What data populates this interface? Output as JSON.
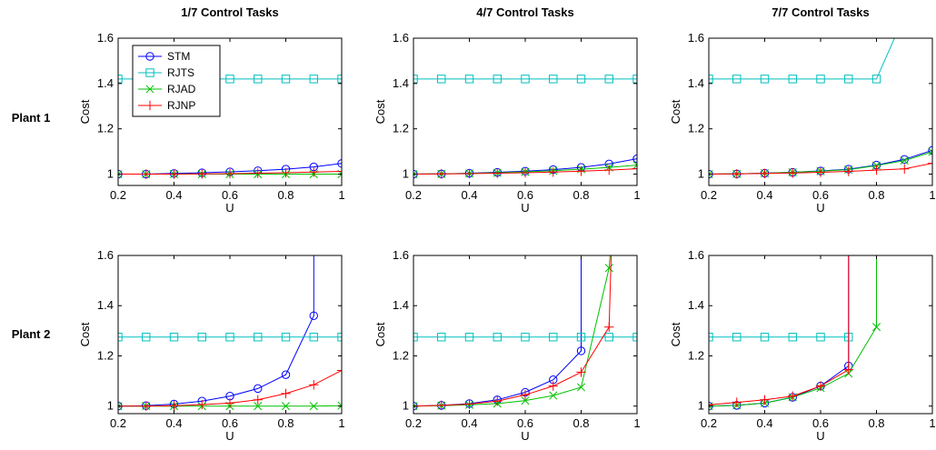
{
  "column_titles": [
    "1/7 Control Tasks",
    "4/7 Control Tasks",
    "7/7 Control Tasks"
  ],
  "row_labels": [
    "Plant 1",
    "Plant 2"
  ],
  "series_styles": [
    {
      "name": "STM",
      "color": "#0000ff",
      "marker": "circle"
    },
    {
      "name": "RJTS",
      "color": "#00bfbf",
      "marker": "square"
    },
    {
      "name": "RJAD",
      "color": "#00c000",
      "marker": "x"
    },
    {
      "name": "RJNP",
      "color": "#ff0000",
      "marker": "plus"
    }
  ],
  "chart_data": [
    {
      "type": "line",
      "title": "1/7 Control Tasks",
      "row": "Plant 1",
      "xlabel": "U",
      "ylabel": "Cost",
      "xlim": [
        0.2,
        1.0
      ],
      "ylim": [
        0.95,
        1.6
      ],
      "xticks": [
        "0.2",
        "0.4",
        "0.6",
        "0.8",
        "1"
      ],
      "yticks": [
        "1",
        "1.2",
        "1.4",
        "1.6"
      ],
      "legend": "top-left",
      "series": [
        {
          "name": "STM",
          "x": [
            0.2,
            0.3,
            0.4,
            0.5,
            0.6,
            0.7,
            0.8,
            0.9,
            1.0
          ],
          "y": [
            1.0,
            1.0,
            1.003,
            1.006,
            1.01,
            1.015,
            1.022,
            1.032,
            1.047
          ]
        },
        {
          "name": "RJTS",
          "x": [
            0.2,
            0.3,
            0.4,
            0.5,
            0.6,
            0.7,
            0.8,
            0.9,
            1.0
          ],
          "y": [
            1.42,
            1.42,
            1.42,
            1.42,
            1.42,
            1.42,
            1.42,
            1.42,
            1.42
          ]
        },
        {
          "name": "RJAD",
          "x": [
            0.2,
            0.3,
            0.4,
            0.5,
            0.6,
            0.7,
            0.8,
            0.9,
            1.0
          ],
          "y": [
            1.0,
            1.0,
            1.0,
            1.0,
            1.0,
            1.0,
            1.0,
            1.0,
            1.0
          ]
        },
        {
          "name": "RJNP",
          "x": [
            0.2,
            0.3,
            0.4,
            0.5,
            0.6,
            0.7,
            0.8,
            0.9,
            1.0
          ],
          "y": [
            1.0,
            1.0,
            1.0,
            1.001,
            1.002,
            1.004,
            1.006,
            1.009,
            1.012
          ]
        }
      ]
    },
    {
      "type": "line",
      "title": "4/7 Control Tasks",
      "row": "Plant 1",
      "xlabel": "U",
      "ylabel": "Cost",
      "xlim": [
        0.2,
        1.0
      ],
      "ylim": [
        0.95,
        1.6
      ],
      "xticks": [
        "0.2",
        "0.4",
        "0.6",
        "0.8",
        "1"
      ],
      "yticks": [
        "1",
        "1.2",
        "1.4",
        "1.6"
      ],
      "series": [
        {
          "name": "STM",
          "x": [
            0.2,
            0.3,
            0.4,
            0.5,
            0.6,
            0.7,
            0.8,
            0.9,
            1.0
          ],
          "y": [
            1.0,
            1.001,
            1.004,
            1.008,
            1.013,
            1.02,
            1.03,
            1.045,
            1.068
          ]
        },
        {
          "name": "RJTS",
          "x": [
            0.2,
            0.3,
            0.4,
            0.5,
            0.6,
            0.7,
            0.8,
            0.9,
            1.0
          ],
          "y": [
            1.42,
            1.42,
            1.42,
            1.42,
            1.42,
            1.42,
            1.42,
            1.42,
            1.42
          ]
        },
        {
          "name": "RJAD",
          "x": [
            0.2,
            0.3,
            0.4,
            0.5,
            0.6,
            0.7,
            0.8,
            0.9,
            1.0
          ],
          "y": [
            1.0,
            1.001,
            1.003,
            1.006,
            1.01,
            1.015,
            1.022,
            1.03,
            1.04
          ]
        },
        {
          "name": "RJNP",
          "x": [
            0.2,
            0.3,
            0.4,
            0.5,
            0.6,
            0.7,
            0.8,
            0.9,
            1.0
          ],
          "y": [
            1.0,
            1.001,
            1.002,
            1.004,
            1.006,
            1.009,
            1.013,
            1.018,
            1.024
          ]
        }
      ]
    },
    {
      "type": "line",
      "title": "7/7 Control Tasks",
      "row": "Plant 1",
      "xlabel": "U",
      "ylabel": "Cost",
      "xlim": [
        0.2,
        1.0
      ],
      "ylim": [
        0.95,
        1.6
      ],
      "xticks": [
        "0.2",
        "0.4",
        "0.6",
        "0.8",
        "1"
      ],
      "yticks": [
        "1",
        "1.2",
        "1.4",
        "1.6"
      ],
      "series": [
        {
          "name": "STM",
          "x": [
            0.2,
            0.3,
            0.4,
            0.5,
            0.6,
            0.7,
            0.8,
            0.9,
            1.0
          ],
          "y": [
            1.0,
            1.001,
            1.004,
            1.008,
            1.014,
            1.022,
            1.04,
            1.065,
            1.105
          ]
        },
        {
          "name": "RJTS",
          "x": [
            0.2,
            0.3,
            0.4,
            0.5,
            0.6,
            0.7,
            0.8,
            0.9
          ],
          "y": [
            1.42,
            1.42,
            1.42,
            1.42,
            1.42,
            1.42,
            1.42,
            1.7
          ]
        },
        {
          "name": "RJAD",
          "x": [
            0.2,
            0.3,
            0.4,
            0.5,
            0.6,
            0.7,
            0.8,
            0.9,
            1.0
          ],
          "y": [
            1.0,
            1.001,
            1.004,
            1.008,
            1.013,
            1.02,
            1.038,
            1.06,
            1.098
          ]
        },
        {
          "name": "RJNP",
          "x": [
            0.2,
            0.3,
            0.4,
            0.5,
            0.6,
            0.7,
            0.8,
            0.9,
            1.0
          ],
          "y": [
            1.0,
            1.001,
            1.003,
            1.005,
            1.008,
            1.012,
            1.018,
            1.023,
            1.048
          ]
        }
      ]
    },
    {
      "type": "line",
      "title": "1/7 Control Tasks",
      "row": "Plant 2",
      "xlabel": "U",
      "ylabel": "Cost",
      "xlim": [
        0.2,
        1.0
      ],
      "ylim": [
        0.97,
        1.6
      ],
      "xticks": [
        "0.2",
        "0.4",
        "0.6",
        "0.8",
        "1"
      ],
      "yticks": [
        "1",
        "1.2",
        "1.4",
        "1.6"
      ],
      "series": [
        {
          "name": "STM",
          "x": [
            0.2,
            0.3,
            0.4,
            0.5,
            0.6,
            0.7,
            0.8,
            0.9,
            0.9
          ],
          "y": [
            1.0,
            1.002,
            1.008,
            1.02,
            1.04,
            1.07,
            1.125,
            1.36,
            1.7
          ]
        },
        {
          "name": "RJTS",
          "x": [
            0.2,
            0.3,
            0.4,
            0.5,
            0.6,
            0.7,
            0.8,
            0.9,
            1.0
          ],
          "y": [
            1.275,
            1.275,
            1.275,
            1.275,
            1.275,
            1.275,
            1.275,
            1.275,
            1.275
          ]
        },
        {
          "name": "RJAD",
          "x": [
            0.2,
            0.3,
            0.4,
            0.5,
            0.6,
            0.7,
            0.8,
            0.9,
            1.0
          ],
          "y": [
            1.0,
            1.0,
            1.0,
            1.0,
            1.0,
            1.0,
            1.0,
            1.0,
            1.002
          ]
        },
        {
          "name": "RJNP",
          "x": [
            0.2,
            0.3,
            0.4,
            0.5,
            0.6,
            0.7,
            0.8,
            0.9,
            1.0
          ],
          "y": [
            1.0,
            1.0,
            1.002,
            1.006,
            1.012,
            1.025,
            1.05,
            1.085,
            1.142
          ]
        }
      ]
    },
    {
      "type": "line",
      "title": "4/7 Control Tasks",
      "row": "Plant 2",
      "xlabel": "U",
      "ylabel": "Cost",
      "xlim": [
        0.2,
        1.0
      ],
      "ylim": [
        0.97,
        1.6
      ],
      "xticks": [
        "0.2",
        "0.4",
        "0.6",
        "0.8",
        "1"
      ],
      "yticks": [
        "1",
        "1.2",
        "1.4",
        "1.6"
      ],
      "series": [
        {
          "name": "STM",
          "x": [
            0.2,
            0.3,
            0.4,
            0.5,
            0.6,
            0.7,
            0.8,
            0.8
          ],
          "y": [
            1.0,
            1.003,
            1.01,
            1.025,
            1.055,
            1.105,
            1.22,
            1.7
          ]
        },
        {
          "name": "RJTS",
          "x": [
            0.2,
            0.3,
            0.4,
            0.5,
            0.6,
            0.7,
            0.8,
            0.9,
            1.0
          ],
          "y": [
            1.275,
            1.275,
            1.275,
            1.275,
            1.275,
            1.275,
            1.275,
            1.275,
            1.275
          ]
        },
        {
          "name": "RJAD",
          "x": [
            0.2,
            0.3,
            0.4,
            0.5,
            0.6,
            0.7,
            0.8,
            0.9,
            0.91
          ],
          "y": [
            1.0,
            1.002,
            1.005,
            1.01,
            1.022,
            1.042,
            1.075,
            1.55,
            1.7
          ]
        },
        {
          "name": "RJNP",
          "x": [
            0.2,
            0.3,
            0.4,
            0.5,
            0.6,
            0.7,
            0.8,
            0.9,
            0.91
          ],
          "y": [
            1.0,
            1.003,
            1.008,
            1.02,
            1.045,
            1.08,
            1.135,
            1.315,
            1.7
          ]
        }
      ]
    },
    {
      "type": "line",
      "title": "7/7 Control Tasks",
      "row": "Plant 2",
      "xlabel": "U",
      "ylabel": "Cost",
      "xlim": [
        0.2,
        1.0
      ],
      "ylim": [
        0.97,
        1.6
      ],
      "xticks": [
        "0.2",
        "0.4",
        "0.6",
        "0.8",
        "1"
      ],
      "yticks": [
        "1",
        "1.2",
        "1.4",
        "1.6"
      ],
      "series": [
        {
          "name": "STM",
          "x": [
            0.2,
            0.3,
            0.4,
            0.5,
            0.6,
            0.7,
            0.7
          ],
          "y": [
            1.0,
            1.003,
            1.012,
            1.035,
            1.08,
            1.16,
            1.7
          ]
        },
        {
          "name": "RJTS",
          "x": [
            0.2,
            0.3,
            0.4,
            0.5,
            0.6,
            0.7
          ],
          "y": [
            1.275,
            1.275,
            1.275,
            1.275,
            1.275,
            1.275
          ]
        },
        {
          "name": "RJAD",
          "x": [
            0.2,
            0.3,
            0.4,
            0.5,
            0.6,
            0.7,
            0.8,
            0.8
          ],
          "y": [
            1.0,
            1.003,
            1.012,
            1.035,
            1.072,
            1.13,
            1.315,
            1.7
          ]
        },
        {
          "name": "RJNP",
          "x": [
            0.2,
            0.3,
            0.4,
            0.5,
            0.6,
            0.7,
            0.7
          ],
          "y": [
            1.005,
            1.015,
            1.025,
            1.04,
            1.08,
            1.145,
            1.7
          ]
        }
      ]
    }
  ]
}
